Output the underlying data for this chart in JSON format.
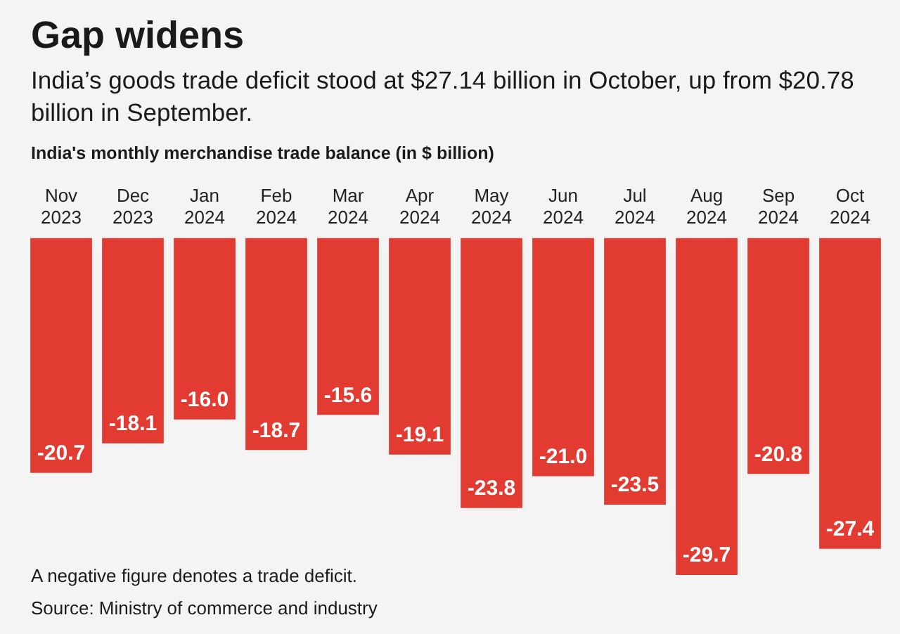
{
  "chart_data": {
    "type": "bar",
    "title": "Gap widens",
    "subtitle": "India’s goods trade deficit stood at $27.14 billion in October, up from $20.78 billion in September.",
    "ylabel": "India's monthly merchandise trade balance (in $ billion)",
    "categories": [
      "Nov 2023",
      "Dec 2023",
      "Jan 2024",
      "Feb 2024",
      "Mar 2024",
      "Apr 2024",
      "May 2024",
      "Jun 2024",
      "Jul 2024",
      "Aug 2024",
      "Sep 2024",
      "Oct 2024"
    ],
    "values": [
      -20.7,
      -18.1,
      -16.0,
      -18.7,
      -15.6,
      -19.1,
      -23.8,
      -21.0,
      -23.5,
      -29.7,
      -20.8,
      -27.4
    ],
    "value_labels": [
      "-20.7",
      "-18.1",
      "-16.0",
      "-18.7",
      "-15.6",
      "-19.1",
      "-23.8",
      "-21.0",
      "-23.5",
      "-29.7",
      "-20.8",
      "-27.4"
    ],
    "color": "#e23c32",
    "grid": false,
    "legend": false,
    "annotations": [
      "A negative figure denotes a trade deficit.",
      "Source: Ministry of commerce and industry"
    ]
  }
}
